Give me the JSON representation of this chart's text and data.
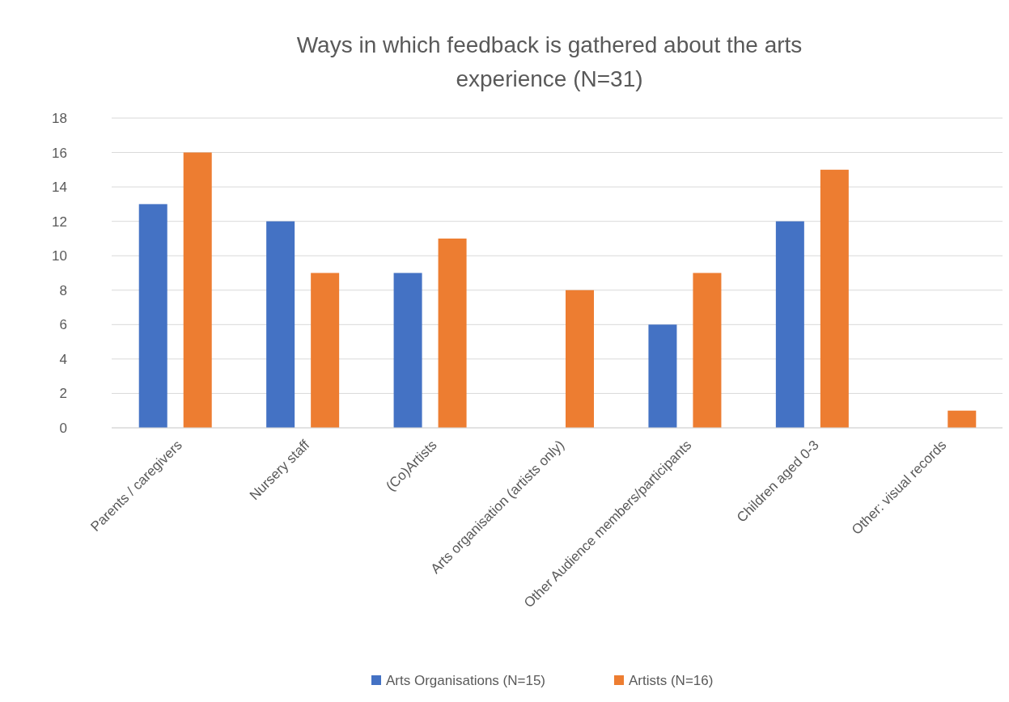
{
  "chart_data": {
    "type": "bar",
    "title": "Ways in which feedback is gathered about the arts experience (N=31)",
    "categories": [
      "Parents / caregivers",
      "Nursery staff",
      "(Co)Artists",
      "Arts organisation (artists only)",
      "Other Audience members/participants",
      "Children aged 0-3",
      "Other: visual records"
    ],
    "series": [
      {
        "name": "Arts Organisations (N=15)",
        "color": "#4472c4",
        "values": [
          13,
          12,
          9,
          0,
          6,
          12,
          0
        ]
      },
      {
        "name": "Artists (N=16)",
        "color": "#ed7d31",
        "values": [
          16,
          9,
          11,
          8,
          9,
          15,
          1
        ]
      }
    ],
    "ylim": [
      0,
      18
    ],
    "yticks": [
      0,
      2,
      4,
      6,
      8,
      10,
      12,
      14,
      16,
      18
    ],
    "grid": "y",
    "legend": "bottom"
  }
}
